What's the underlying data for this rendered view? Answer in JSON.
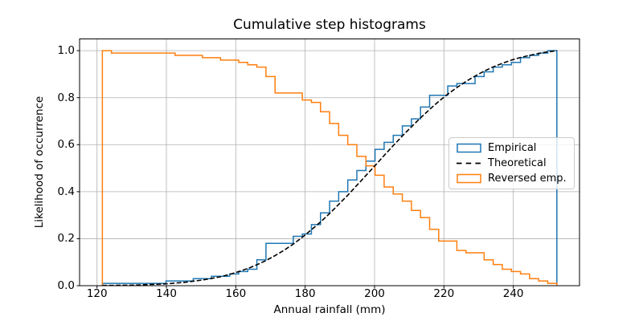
{
  "figure": {
    "title": "Cumulative step histograms",
    "xlabel": "Annual rainfall (mm)",
    "ylabel": "Likelihood of occurrence",
    "x_tick_labels": [
      "120",
      "140",
      "160",
      "180",
      "200",
      "220",
      "240"
    ],
    "y_tick_labels": [
      "0.0",
      "0.2",
      "0.4",
      "0.6",
      "0.8",
      "1.0"
    ],
    "legend": {
      "location": "right",
      "items": [
        {
          "label": "Empirical",
          "color": "#1f77b4",
          "swatch": "rect"
        },
        {
          "label": "Theoretical",
          "color": "#000000",
          "swatch": "dashed-line"
        },
        {
          "label": "Reversed emp.",
          "color": "#ff7f0e",
          "swatch": "rect"
        }
      ]
    },
    "colors": {
      "background": "#ffffff",
      "axes": "#000000",
      "grid": "#b0b0b0",
      "legend_border": "#cccccc",
      "empirical": "#1f77b4",
      "theoretical": "#000000",
      "reversed": "#ff7f0e"
    }
  },
  "chart_data": {
    "type": "line",
    "subtype": "cumulative-step-histogram",
    "title": "Cumulative step histograms",
    "xlabel": "Annual rainfall (mm)",
    "ylabel": "Likelihood of occurrence",
    "grid": true,
    "legend_position": "right",
    "xlim": [
      114.97,
      259.08
    ],
    "ylim": [
      0,
      1.05
    ],
    "x_ticks": [
      120,
      140,
      160,
      180,
      200,
      220,
      240
    ],
    "y_ticks": [
      0.0,
      0.2,
      0.4,
      0.6,
      0.8,
      1.0
    ],
    "bin_edges": [
      121.54,
      124.16,
      126.78,
      129.4,
      132.02,
      134.64,
      137.26,
      139.88,
      142.5,
      145.12,
      147.74,
      150.36,
      152.98,
      155.6,
      158.22,
      160.84,
      163.46,
      166.08,
      168.7,
      171.32,
      173.94,
      176.56,
      179.18,
      181.8,
      184.42,
      187.04,
      189.66,
      192.28,
      194.9,
      197.52,
      200.14,
      202.76,
      205.39,
      208.01,
      210.63,
      213.25,
      215.87,
      218.49,
      221.11,
      223.73,
      226.35,
      228.97,
      231.59,
      234.21,
      236.83,
      239.45,
      242.07,
      244.69,
      247.31,
      249.93,
      252.55
    ],
    "series": [
      {
        "name": "Empirical",
        "style": "step",
        "color": "#1f77b4",
        "bin_counts": [
          1,
          0,
          0,
          0,
          0,
          0,
          0,
          1,
          0,
          0,
          1,
          0,
          1,
          0,
          1,
          1,
          1,
          4,
          7,
          0,
          0,
          3,
          1,
          4,
          5,
          5,
          4,
          5,
          4,
          4,
          5,
          3,
          3,
          4,
          3,
          5,
          5,
          0,
          4,
          1,
          0,
          3,
          2,
          2,
          1,
          1,
          2,
          1,
          1,
          1
        ],
        "values": [
          0.01,
          0.01,
          0.01,
          0.01,
          0.01,
          0.01,
          0.01,
          0.02,
          0.02,
          0.02,
          0.03,
          0.03,
          0.04,
          0.04,
          0.05,
          0.06,
          0.07,
          0.11,
          0.18,
          0.18,
          0.18,
          0.21,
          0.22,
          0.26,
          0.31,
          0.36,
          0.4,
          0.45,
          0.49,
          0.53,
          0.58,
          0.61,
          0.64,
          0.68,
          0.71,
          0.76,
          0.81,
          0.81,
          0.85,
          0.86,
          0.86,
          0.89,
          0.91,
          0.93,
          0.94,
          0.95,
          0.97,
          0.98,
          0.99,
          1.0
        ]
      },
      {
        "name": "Theoretical",
        "style": "dashed",
        "color": "#000000",
        "values_at_bin_edges": [
          0.001,
          0.001,
          0.002,
          0.002,
          0.003,
          0.005,
          0.006,
          0.008,
          0.011,
          0.014,
          0.019,
          0.024,
          0.031,
          0.038,
          0.048,
          0.06,
          0.073,
          0.089,
          0.107,
          0.128,
          0.151,
          0.177,
          0.206,
          0.238,
          0.271,
          0.307,
          0.346,
          0.385,
          0.427,
          0.469,
          0.511,
          0.554,
          0.596,
          0.637,
          0.676,
          0.714,
          0.75,
          0.784,
          0.815,
          0.843,
          0.869,
          0.892,
          0.913,
          0.931,
          0.946,
          0.96,
          0.971,
          0.98,
          0.988,
          0.995,
          1.0
        ]
      },
      {
        "name": "Reversed emp.",
        "style": "step",
        "color": "#ff7f0e",
        "values": [
          1.0,
          0.99,
          0.99,
          0.99,
          0.99,
          0.99,
          0.99,
          0.99,
          0.98,
          0.98,
          0.98,
          0.97,
          0.97,
          0.96,
          0.96,
          0.95,
          0.94,
          0.93,
          0.89,
          0.82,
          0.82,
          0.82,
          0.79,
          0.78,
          0.74,
          0.69,
          0.64,
          0.6,
          0.55,
          0.51,
          0.47,
          0.42,
          0.39,
          0.36,
          0.32,
          0.29,
          0.24,
          0.19,
          0.19,
          0.15,
          0.14,
          0.14,
          0.11,
          0.09,
          0.07,
          0.06,
          0.05,
          0.03,
          0.02,
          0.01
        ]
      }
    ]
  }
}
